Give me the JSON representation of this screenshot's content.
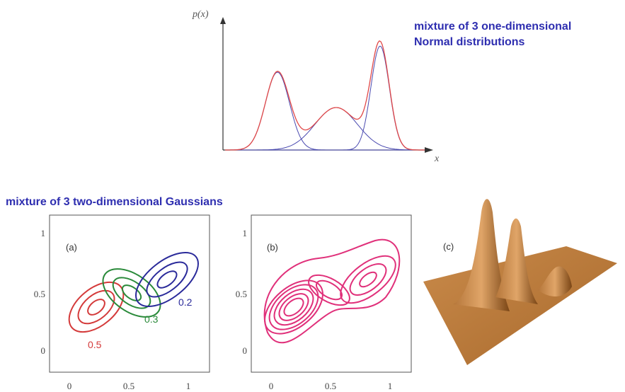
{
  "top": {
    "title_lines": [
      "mixture of 3 one-dimensional",
      "Normal distributions"
    ],
    "y_label": "p(x)",
    "x_label": "x"
  },
  "bottom": {
    "title": "mixture of 3 two-dimensional Gaussians",
    "panels": [
      {
        "label": "(a)",
        "xticks": [
          "0",
          "0.5",
          "1"
        ],
        "yticks": [
          "1",
          "0.5",
          "0"
        ],
        "weights": [
          "0.5",
          "0.3",
          "0.2"
        ]
      },
      {
        "label": "(b)",
        "xticks": [
          "0",
          "0.5",
          "1"
        ],
        "yticks": [
          "1",
          "0.5",
          "0"
        ]
      },
      {
        "label": "(c)"
      }
    ]
  }
}
